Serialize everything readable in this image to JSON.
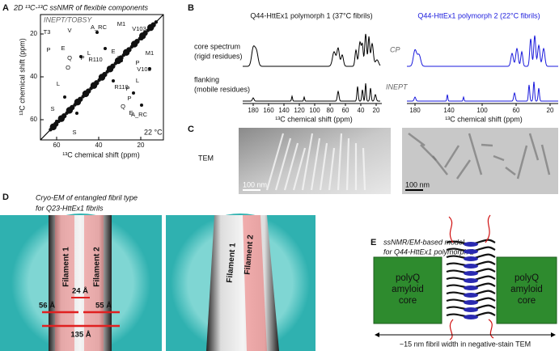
{
  "panels": {
    "a": {
      "letter": "A",
      "title": "2D ¹³C-¹³C ssNMR of flexible components",
      "inset": "INEPT/TOBSY",
      "temperature": "22 °C",
      "x_label": "¹³C chemical shift (ppm)",
      "y_label": "¹³C chemical shift (ppm)",
      "x_ticks": [
        "60",
        "40",
        "20"
      ],
      "y_ticks": [
        "20",
        "40",
        "60"
      ],
      "peak_labels": [
        "T3",
        "V",
        "A_RC",
        "M1",
        "V103",
        "P",
        "E",
        "Q",
        "O",
        "L",
        "P",
        "R110",
        "M",
        "E",
        "M1",
        "P",
        "V103",
        "L",
        "R110",
        "P",
        "Q",
        "E",
        "S",
        "S",
        "A_RC",
        "P",
        "L"
      ]
    },
    "b": {
      "letter": "B",
      "title_1": "Q44-HttEx1 polymorph 1 (37°C fibrils)",
      "title_2": "Q44-HttEx1 polymorph 2 (22°C fibrils)",
      "core_label": "core spectrum",
      "core_sub": "(rigid residues)",
      "flank_label": "flanking",
      "flank_sub": "(mobile residues)",
      "cp": "CP",
      "inept": "INEPT",
      "x_ticks_1": [
        "180",
        "160",
        "140",
        "120",
        "100",
        "80",
        "60",
        "40",
        "20"
      ],
      "x_ticks_2": [
        "180",
        "140",
        "100",
        "60",
        "20"
      ],
      "x_label_1": "¹³C chemical shift (ppm)",
      "x_label_2": "¹³C chemical shift (ppm)"
    },
    "c": {
      "letter": "C",
      "label": "TEM",
      "scale_1": "100 nm",
      "scale_2": "100 nm"
    },
    "d": {
      "letter": "D",
      "title_1": "Cryo-EM of entangled fibril type",
      "title_2": "for Q23-HttEx1 fibrils",
      "filament_1": "Filament 1",
      "filament_2": "Filament 2",
      "w_24": "24 Å",
      "w_56": "56 Å",
      "w_55": "55 Å",
      "w_135": "135 Å",
      "filament_1b": "Filament 1",
      "filament_2b": "Filament 2"
    },
    "e": {
      "letter": "E",
      "title_1": "ssNMR/EM-based model",
      "title_2": "for Q44-HttEx1 polymorph 2",
      "left_core": [
        "polyQ",
        "amyloid",
        "core"
      ],
      "right_core": [
        "polyQ",
        "amyloid",
        "core"
      ],
      "width_note": "~15 nm fibril width in negative-stain TEM"
    }
  }
}
